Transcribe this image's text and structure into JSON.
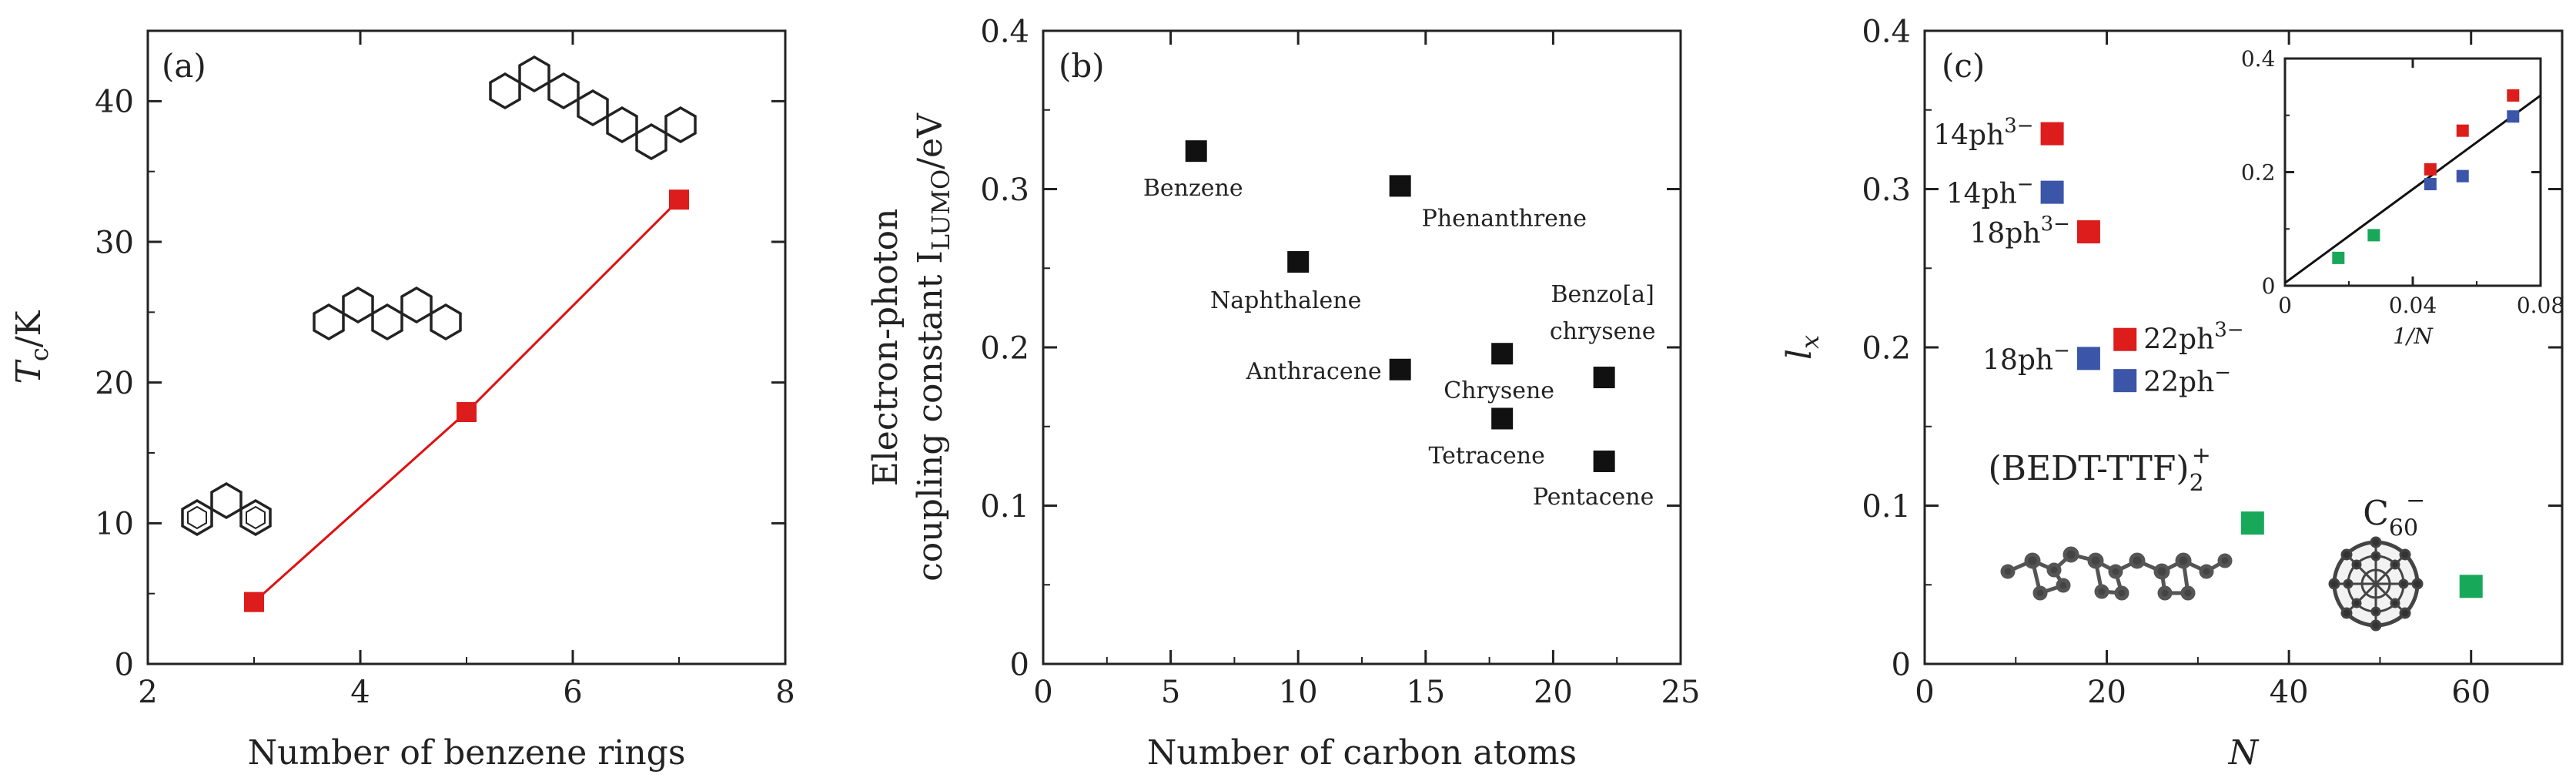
{
  "colors": {
    "red": "#dd1c1c",
    "blue": "#3b55a8",
    "green": "#18a85a",
    "black": "#111111",
    "fit_line": "#111111",
    "red_line": "#e01010"
  },
  "chart_data": [
    {
      "type": "line",
      "panel_label": "(a)",
      "xlabel": "Number of benzene rings",
      "ylabel_main": "T",
      "ylabel_sub": "c",
      "ylabel_rest": "/K",
      "xlim": [
        2,
        8
      ],
      "ylim": [
        0,
        45
      ],
      "xticks": [
        2,
        4,
        6,
        8
      ],
      "yticks": [
        0,
        10,
        20,
        30,
        40
      ],
      "series": [
        {
          "x": [
            3,
            5,
            7
          ],
          "y": [
            4.4,
            17.9,
            33.0
          ],
          "color": "#dd1c1c"
        }
      ],
      "molecule_icons": [
        "phenanthrene-structure-icon",
        "picene-structure-icon",
        "seven-ring-structure-icon"
      ]
    },
    {
      "type": "scatter",
      "panel_label": "(b)",
      "xlabel": "Number of carbon atoms",
      "ylabel_line1": "Electron-photon",
      "ylabel_line2": "coupling constant I",
      "ylabel_sub": "LUMO",
      "ylabel_rest": "/eV",
      "xlim": [
        0,
        25
      ],
      "ylim": [
        0,
        0.4
      ],
      "xticks": [
        0,
        5,
        10,
        15,
        20,
        25
      ],
      "yticks": [
        "0",
        "0.1",
        "0.2",
        "0.3",
        "0.4"
      ],
      "points": [
        {
          "x": 6,
          "y": 0.324,
          "label": "Benzene"
        },
        {
          "x": 10,
          "y": 0.254,
          "label": "Naphthalene"
        },
        {
          "x": 14,
          "y": 0.302,
          "label": "Phenanthrene"
        },
        {
          "x": 14,
          "y": 0.186,
          "label": "Anthracene"
        },
        {
          "x": 18,
          "y": 0.196,
          "label": "Chrysene"
        },
        {
          "x": 18,
          "y": 0.155,
          "label": "Tetracene"
        },
        {
          "x": 22,
          "y": 0.181,
          "label_line1": "Benzo[a]",
          "label_line2": "chrysene"
        },
        {
          "x": 22,
          "y": 0.128,
          "label": "Pentacene"
        }
      ]
    },
    {
      "type": "scatter",
      "panel_label": "(c)",
      "xlabel": "N",
      "ylabel_main": "l",
      "ylabel_sub": "x",
      "xlim": [
        0,
        70
      ],
      "ylim": [
        0,
        0.4
      ],
      "xticks": [
        0,
        20,
        40,
        60
      ],
      "yticks": [
        "0",
        "0.1",
        "0.2",
        "0.3",
        "0.4"
      ],
      "points": [
        {
          "x": 14,
          "y": 0.335,
          "color": "#dd1c1c",
          "label_main": "14ph",
          "label_sup": "3−"
        },
        {
          "x": 14,
          "y": 0.298,
          "color": "#3b55a8",
          "label_main": "14ph",
          "label_sup": "−"
        },
        {
          "x": 18,
          "y": 0.273,
          "color": "#dd1c1c",
          "label_main": "18ph",
          "label_sup": "3−"
        },
        {
          "x": 22,
          "y": 0.205,
          "color": "#dd1c1c",
          "label_main": "22ph",
          "label_sup": "3−"
        },
        {
          "x": 18,
          "y": 0.193,
          "color": "#3b55a8",
          "label_main": "18ph",
          "label_sup": "−"
        },
        {
          "x": 22,
          "y": 0.179,
          "color": "#3b55a8",
          "label_main": "22ph",
          "label_sup": "−"
        },
        {
          "x": 36,
          "y": 0.089,
          "color": "#18a85a",
          "label_main": "(BEDT-TTF)",
          "label_sub": "2",
          "label_sup": "+"
        },
        {
          "x": 60,
          "y": 0.049,
          "color": "#18a85a",
          "label_main": "C",
          "label_sub": "60",
          "label_sup": "−"
        }
      ],
      "molecule_icons": [
        "bedt-ttf-structure-icon",
        "c60-fullerene-icon"
      ],
      "inset": {
        "xlabel": "1/N",
        "xlim": [
          0,
          0.08
        ],
        "ylim": [
          0,
          0.4
        ],
        "xticks": [
          "0",
          "0.04",
          "0.08"
        ],
        "yticks": [
          "0",
          "0.2",
          "0.4"
        ],
        "points": [
          {
            "x": 0.0167,
            "y": 0.049,
            "color": "#18a85a"
          },
          {
            "x": 0.0278,
            "y": 0.089,
            "color": "#18a85a"
          },
          {
            "x": 0.0455,
            "y": 0.205,
            "color": "#dd1c1c"
          },
          {
            "x": 0.0455,
            "y": 0.179,
            "color": "#3b55a8"
          },
          {
            "x": 0.0556,
            "y": 0.273,
            "color": "#dd1c1c"
          },
          {
            "x": 0.0556,
            "y": 0.193,
            "color": "#3b55a8"
          },
          {
            "x": 0.0714,
            "y": 0.335,
            "color": "#dd1c1c"
          },
          {
            "x": 0.0714,
            "y": 0.298,
            "color": "#3b55a8"
          }
        ],
        "fit": {
          "x": [
            0,
            0.08
          ],
          "y": [
            0.005,
            0.335
          ]
        }
      }
    }
  ]
}
